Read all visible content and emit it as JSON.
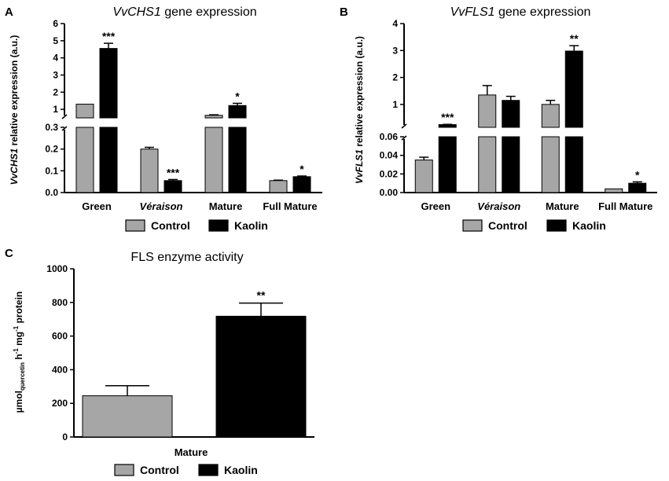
{
  "colors": {
    "control": "#a6a6a6",
    "kaolin": "#000000"
  },
  "legend": {
    "control_label": "Control",
    "kaolin_label": "Kaolin"
  },
  "chart_data": [
    {
      "panel": "A",
      "type": "bar",
      "title": "VvCHS1 gene expression",
      "title_gene": "VvCHS1",
      "title_rest": " gene expression",
      "ylabel_gene": "VvCHS1",
      "ylabel_rest": " relative expression (a.u.)",
      "categories": [
        "Green",
        "Véraison",
        "Mature",
        "Full Mature"
      ],
      "category_italic": [
        false,
        true,
        false,
        false
      ],
      "series": [
        {
          "name": "Control",
          "values": [
            1.3,
            0.2,
            0.65,
            0.055
          ],
          "errors": [
            0,
            0.008,
            0.03,
            0.002
          ]
        },
        {
          "name": "Kaolin",
          "values": [
            4.55,
            0.055,
            1.22,
            0.073
          ],
          "errors": [
            0.3,
            0.005,
            0.13,
            0.003
          ]
        }
      ],
      "significance": [
        {
          "category": 0,
          "series": 1,
          "label": "***"
        },
        {
          "category": 1,
          "series": 1,
          "label": "***"
        },
        {
          "category": 2,
          "series": 1,
          "label": "*"
        },
        {
          "category": 3,
          "series": 1,
          "label": "*"
        }
      ],
      "axis_break": true,
      "lower_ylim": [
        0,
        0.3
      ],
      "lower_yticks": [
        "0.0",
        "0.1",
        "0.2",
        "0.3"
      ],
      "upper_ylim": [
        0.5,
        6
      ],
      "upper_yticks": [
        "1",
        "2",
        "3",
        "4",
        "5",
        "6"
      ]
    },
    {
      "panel": "B",
      "type": "bar",
      "title": "VvFLS1 gene expression",
      "title_gene": "VvFLS1",
      "title_rest": " gene expression",
      "ylabel_gene": "VvFLS1",
      "ylabel_rest": " relative expression (a.u.)",
      "categories": [
        "Green",
        "Véraison",
        "Mature",
        "Full Mature"
      ],
      "category_italic": [
        false,
        true,
        false,
        false
      ],
      "series": [
        {
          "name": "Control",
          "values": [
            0.035,
            1.35,
            1.0,
            0.004
          ],
          "errors": [
            0.003,
            0.35,
            0.15,
            0
          ]
        },
        {
          "name": "Kaolin",
          "values": [
            0.25,
            1.15,
            2.98,
            0.01
          ],
          "errors": [
            0.01,
            0.15,
            0.2,
            0.0015
          ]
        }
      ],
      "significance": [
        {
          "category": 0,
          "series": 1,
          "label": "***"
        },
        {
          "category": 2,
          "series": 1,
          "label": "**"
        },
        {
          "category": 3,
          "series": 1,
          "label": "*"
        }
      ],
      "axis_break": true,
      "lower_ylim": [
        0,
        0.06
      ],
      "lower_yticks": [
        "0.00",
        "0.02",
        "0.04",
        "0.06"
      ],
      "upper_ylim": [
        0.15,
        4
      ],
      "upper_yticks": [
        "1",
        "2",
        "3",
        "4"
      ]
    },
    {
      "panel": "C",
      "type": "bar",
      "title": "FLS enzyme activity",
      "ylabel_main": "µmol",
      "ylabel_sub": "quercetin",
      "ylabel_rest_a": " h",
      "ylabel_sup_a": "-1",
      "ylabel_rest_b": " mg",
      "ylabel_sup_b": "-1",
      "ylabel_rest_c": " protein",
      "categories": [
        "Mature"
      ],
      "series": [
        {
          "name": "Control",
          "values": [
            245
          ],
          "errors": [
            60
          ]
        },
        {
          "name": "Kaolin",
          "values": [
            718
          ],
          "errors": [
            78
          ]
        }
      ],
      "significance": [
        {
          "category": 0,
          "series": 1,
          "label": "**"
        }
      ],
      "ylim": [
        0,
        1000
      ],
      "yticks": [
        "0",
        "200",
        "400",
        "600",
        "800",
        "1000"
      ]
    }
  ]
}
